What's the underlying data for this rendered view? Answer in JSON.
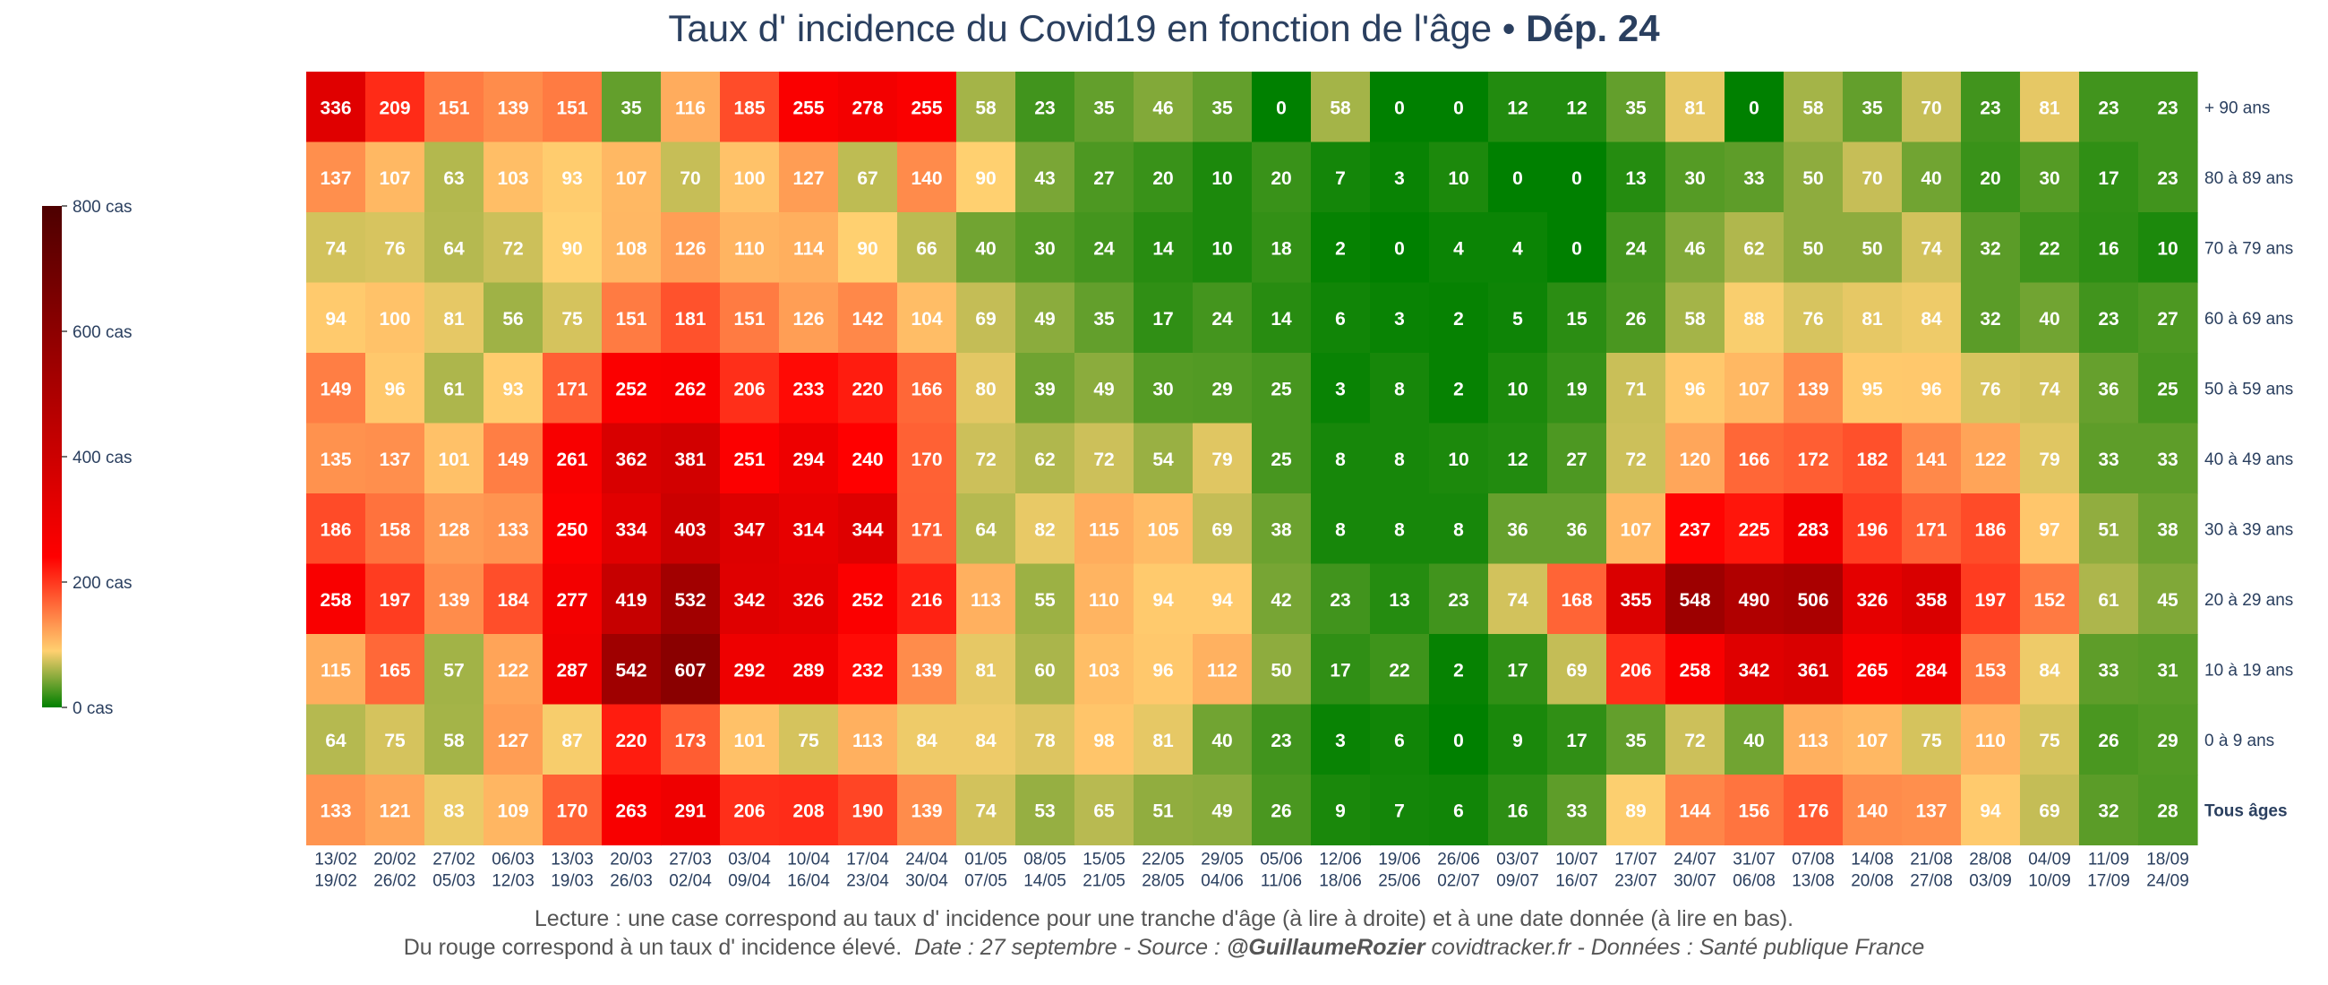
{
  "title": {
    "main": "Taux d' incidence du Covid19 en fonction de l'âge",
    "separator": "•",
    "dept": "Dép. 24"
  },
  "footer": {
    "line1": "Lecture : une case correspond au taux d' incidence pour une tranche d'âge (à lire à droite) et à une date donnée (à lire en bas).",
    "line2_a": "Du rouge correspond à un taux d' incidence élevé.",
    "line2_b": "Date : 27 septembre - Source :",
    "line2_c": "@GuillaumeRozier",
    "line2_d": "covidtracker.fr - Données : Santé publique France"
  },
  "colors": {
    "low": "#008000",
    "mid1": "#ffd070",
    "mid2": "#ff0000",
    "high": "#4d0000",
    "text": "#ffffff",
    "axis": "#2a3f5f"
  },
  "chart_data": {
    "type": "heatmap",
    "colorbar": {
      "min": 0,
      "max": 800,
      "ticks": [
        0,
        200,
        400,
        600,
        800
      ],
      "tick_labels": [
        "0 cas",
        "200 cas",
        "400 cas",
        "600 cas",
        "800 cas"
      ]
    },
    "x_labels": [
      [
        "13/02",
        "19/02"
      ],
      [
        "20/02",
        "26/02"
      ],
      [
        "27/02",
        "05/03"
      ],
      [
        "06/03",
        "12/03"
      ],
      [
        "13/03",
        "19/03"
      ],
      [
        "20/03",
        "26/03"
      ],
      [
        "27/03",
        "02/04"
      ],
      [
        "03/04",
        "09/04"
      ],
      [
        "10/04",
        "16/04"
      ],
      [
        "17/04",
        "23/04"
      ],
      [
        "24/04",
        "30/04"
      ],
      [
        "01/05",
        "07/05"
      ],
      [
        "08/05",
        "14/05"
      ],
      [
        "15/05",
        "21/05"
      ],
      [
        "22/05",
        "28/05"
      ],
      [
        "29/05",
        "04/06"
      ],
      [
        "05/06",
        "11/06"
      ],
      [
        "12/06",
        "18/06"
      ],
      [
        "19/06",
        "25/06"
      ],
      [
        "26/06",
        "02/07"
      ],
      [
        "03/07",
        "09/07"
      ],
      [
        "10/07",
        "16/07"
      ],
      [
        "17/07",
        "23/07"
      ],
      [
        "24/07",
        "30/07"
      ],
      [
        "31/07",
        "06/08"
      ],
      [
        "07/08",
        "13/08"
      ],
      [
        "14/08",
        "20/08"
      ],
      [
        "21/08",
        "27/08"
      ],
      [
        "28/08",
        "03/09"
      ],
      [
        "04/09",
        "10/09"
      ],
      [
        "11/09",
        "17/09"
      ],
      [
        "18/09",
        "24/09"
      ]
    ],
    "y_labels": [
      "+ 90 ans",
      "80 à 89 ans",
      "70 à 79 ans",
      "60 à 69 ans",
      "50 à 59 ans",
      "40 à 49 ans",
      "30 à 39 ans",
      "20 à 29 ans",
      "10 à 19 ans",
      "0 à 9 ans",
      "Tous âges"
    ],
    "y_bold_index": 10,
    "values": [
      [
        336,
        209,
        151,
        139,
        151,
        35,
        116,
        185,
        255,
        278,
        255,
        58,
        23,
        35,
        46,
        35,
        0,
        58,
        0,
        0,
        12,
        12,
        35,
        81,
        0,
        58,
        35,
        70,
        23,
        81,
        23,
        23
      ],
      [
        137,
        107,
        63,
        103,
        93,
        107,
        70,
        100,
        127,
        67,
        140,
        90,
        43,
        27,
        20,
        10,
        20,
        7,
        3,
        10,
        0,
        0,
        13,
        30,
        33,
        50,
        70,
        40,
        20,
        30,
        17,
        23
      ],
      [
        74,
        76,
        64,
        72,
        90,
        108,
        126,
        110,
        114,
        90,
        66,
        40,
        30,
        24,
        14,
        10,
        18,
        2,
        0,
        4,
        4,
        0,
        24,
        46,
        62,
        50,
        50,
        74,
        32,
        22,
        16,
        10
      ],
      [
        94,
        100,
        81,
        56,
        75,
        151,
        181,
        151,
        126,
        142,
        104,
        69,
        49,
        35,
        17,
        24,
        14,
        6,
        3,
        2,
        5,
        15,
        26,
        58,
        88,
        76,
        81,
        84,
        32,
        40,
        23,
        27
      ],
      [
        149,
        96,
        61,
        93,
        171,
        252,
        262,
        206,
        233,
        220,
        166,
        80,
        39,
        49,
        30,
        29,
        25,
        3,
        8,
        2,
        10,
        19,
        71,
        96,
        107,
        139,
        95,
        96,
        76,
        74,
        36,
        25
      ],
      [
        135,
        137,
        101,
        149,
        261,
        362,
        381,
        251,
        294,
        240,
        170,
        72,
        62,
        72,
        54,
        79,
        25,
        8,
        8,
        10,
        12,
        27,
        72,
        120,
        166,
        172,
        182,
        141,
        122,
        79,
        33,
        33
      ],
      [
        186,
        158,
        128,
        133,
        250,
        334,
        403,
        347,
        314,
        344,
        171,
        64,
        82,
        115,
        105,
        69,
        38,
        8,
        8,
        8,
        36,
        36,
        107,
        237,
        225,
        283,
        196,
        171,
        186,
        97,
        51,
        38
      ],
      [
        258,
        197,
        139,
        184,
        277,
        419,
        532,
        342,
        326,
        252,
        216,
        113,
        55,
        110,
        94,
        94,
        42,
        23,
        13,
        23,
        74,
        168,
        355,
        548,
        490,
        506,
        326,
        358,
        197,
        152,
        61,
        45
      ],
      [
        115,
        165,
        57,
        122,
        287,
        542,
        607,
        292,
        289,
        232,
        139,
        81,
        60,
        103,
        96,
        112,
        50,
        17,
        22,
        2,
        17,
        69,
        206,
        258,
        342,
        361,
        265,
        284,
        153,
        84,
        33,
        31
      ],
      [
        64,
        75,
        58,
        127,
        87,
        220,
        173,
        101,
        75,
        113,
        84,
        84,
        78,
        98,
        81,
        40,
        23,
        3,
        6,
        0,
        9,
        17,
        35,
        72,
        40,
        113,
        107,
        75,
        110,
        75,
        26,
        29
      ],
      [
        133,
        121,
        83,
        109,
        170,
        263,
        291,
        206,
        208,
        190,
        139,
        74,
        53,
        65,
        51,
        49,
        26,
        9,
        7,
        6,
        16,
        33,
        89,
        144,
        156,
        176,
        140,
        137,
        94,
        69,
        32,
        28
      ]
    ]
  }
}
